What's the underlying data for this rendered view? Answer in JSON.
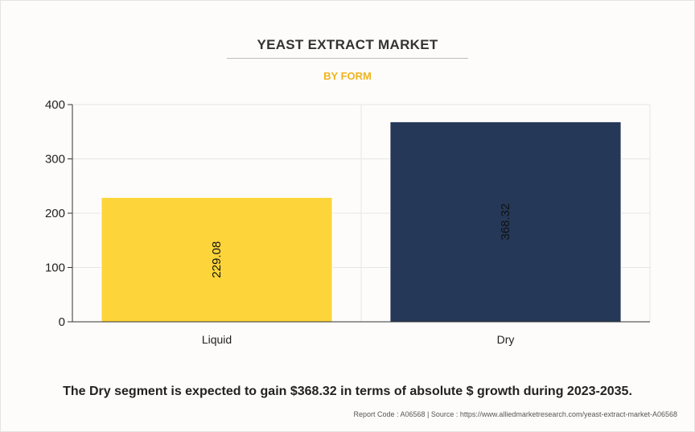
{
  "header": {
    "title": "YEAST EXTRACT MARKET",
    "subtitle": "BY FORM"
  },
  "chart_data": {
    "type": "bar",
    "categories": [
      "Liquid",
      "Dry"
    ],
    "values": [
      229.08,
      368.32
    ],
    "data_labels": [
      "229.08",
      "368.32"
    ],
    "colors": [
      "#fdd53a",
      "#253858"
    ],
    "title": "YEAST EXTRACT MARKET",
    "subtitle": "BY FORM",
    "xlabel": "",
    "ylabel": "",
    "ylim": [
      0,
      400
    ],
    "yticks": [
      0,
      100,
      200,
      300,
      400
    ],
    "grid": true,
    "legend": "none"
  },
  "footer": {
    "summary": "The Dry segment is expected to gain $368.32 in terms of absolute $ growth during 2023-2035.",
    "source": "Report Code : A06568  |  Source : https://www.alliedmarketresearch.com/yeast-extract-market-A06568"
  }
}
